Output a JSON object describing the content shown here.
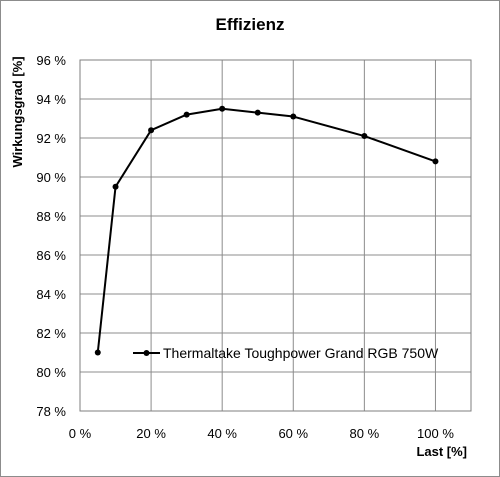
{
  "chart_data": {
    "type": "line",
    "title": "Effizienz",
    "xlabel": "Last [%]",
    "ylabel": "Wirkungsgrad [%]",
    "xlim": [
      0,
      110
    ],
    "ylim": [
      78,
      96
    ],
    "x_ticks": [
      0,
      20,
      40,
      60,
      80,
      100
    ],
    "x_tick_labels": [
      "0 %",
      "20 %",
      "40 %",
      "60 %",
      "80 %",
      "100 %"
    ],
    "y_ticks": [
      78,
      80,
      82,
      84,
      86,
      88,
      90,
      92,
      94,
      96
    ],
    "y_tick_labels": [
      "78 %",
      "80 %",
      "82 %",
      "84 %",
      "86 %",
      "88 %",
      "90 %",
      "92 %",
      "94 %",
      "96 %"
    ],
    "grid": true,
    "legend_position": "bottom-right",
    "series": [
      {
        "name": "Thermaltake Toughpower Grand RGB 750W",
        "color": "#000000",
        "x": [
          5,
          10,
          20,
          30,
          40,
          50,
          60,
          80,
          100
        ],
        "y": [
          81.0,
          89.5,
          92.4,
          93.2,
          93.5,
          93.3,
          93.1,
          92.1,
          90.8
        ]
      }
    ]
  }
}
